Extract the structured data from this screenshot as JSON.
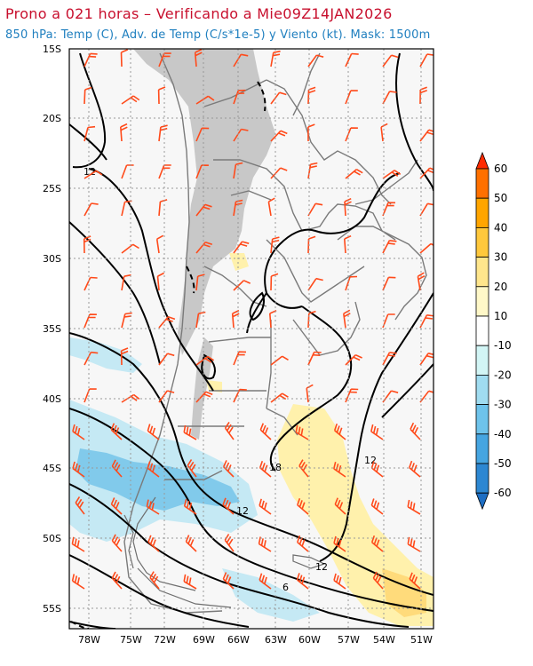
{
  "header": {
    "title": "Prono a 021 horas – Verificando a Mie09Z14JAN2026",
    "subtitle": "850 hPa: Temp (C), Adv. de Temp (C/s*1e-5) y Viento (kt). Mask: 1500m"
  },
  "map": {
    "lat_labels": [
      "15S",
      "20S",
      "25S",
      "30S",
      "35S",
      "40S",
      "45S",
      "50S",
      "55S"
    ],
    "lon_labels": [
      "78W",
      "75W",
      "72W",
      "69W",
      "66W",
      "63W",
      "60W",
      "57W",
      "54W",
      "51W"
    ],
    "contour_labels": [
      "12",
      "18",
      "12",
      "12",
      "12",
      "6"
    ],
    "colors": {
      "land": "#f7f7f7",
      "mask": "#c8c8c8",
      "contour": "#000000",
      "border": "#7a7a7a",
      "wind_barb": "#ff4a1a"
    }
  },
  "colorbar": {
    "labels": [
      "60",
      "50",
      "40",
      "30",
      "20",
      "10",
      "-10",
      "-20",
      "-30",
      "-40",
      "-50",
      "-60"
    ],
    "colors": [
      "#ff2a00",
      "#ff7000",
      "#ffa500",
      "#ffc83c",
      "#ffe68c",
      "#fff8c8",
      "#ffffff",
      "#d2f5f5",
      "#a0dcf0",
      "#6ec3eb",
      "#46a5e1",
      "#2d87d2",
      "#1e6ec3"
    ]
  }
}
